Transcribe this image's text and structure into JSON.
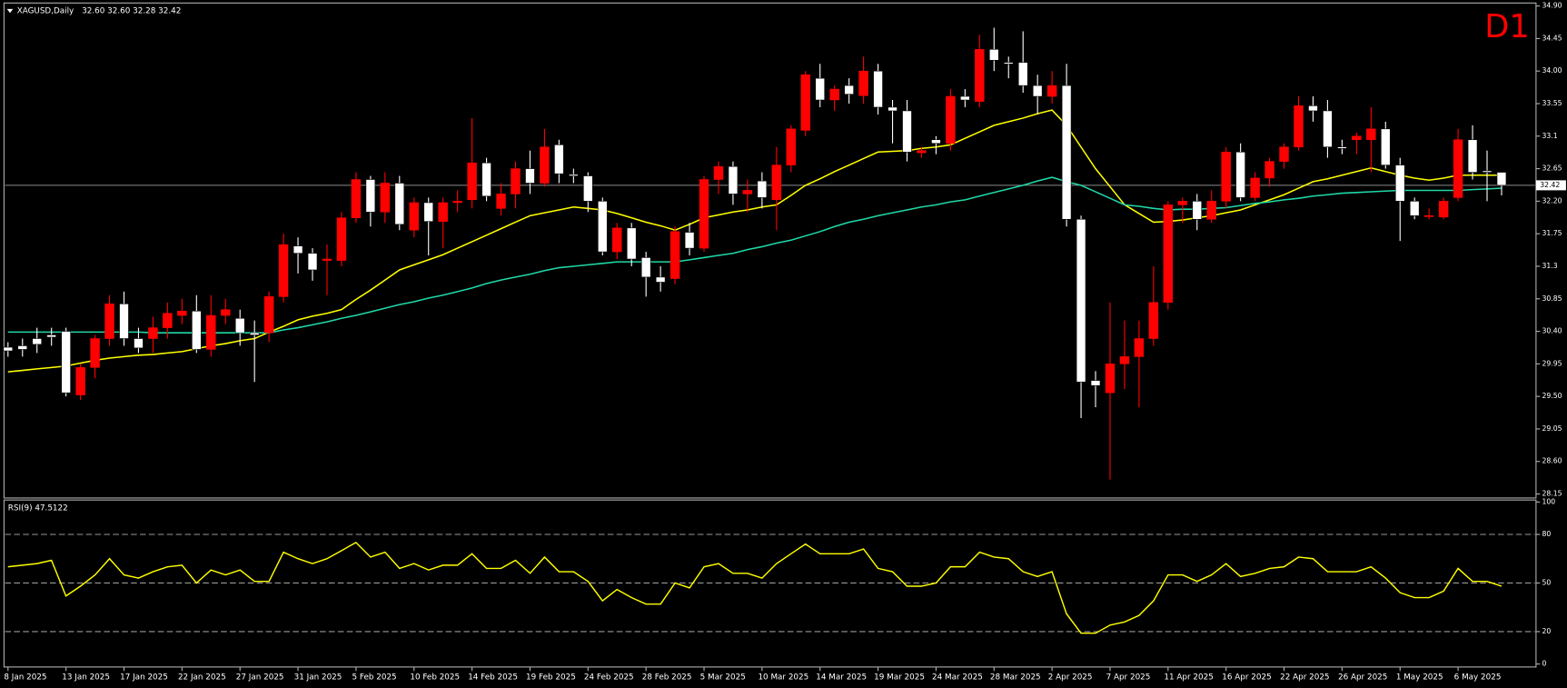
{
  "chart_data": [
    {
      "type": "candlestick",
      "title": "XAGUSD,Daily",
      "header_prices": "32.60 32.60 32.28 32.42",
      "timeframe_label": "D1",
      "categories": [
        "8 Jan 2025",
        null,
        null,
        null,
        "13 Jan 2025",
        null,
        null,
        null,
        "17 Jan 2025",
        null,
        null,
        null,
        "22 Jan 2025",
        null,
        null,
        null,
        "27 Jan 2025",
        null,
        null,
        null,
        "31 Jan 2025",
        null,
        null,
        null,
        "5 Feb 2025",
        null,
        null,
        null,
        "10 Feb 2025",
        null,
        null,
        null,
        "14 Feb 2025",
        null,
        null,
        null,
        "19 Feb 2025",
        null,
        null,
        null,
        "24 Feb 2025",
        null,
        null,
        null,
        "28 Feb 2025",
        null,
        null,
        null,
        "5 Mar 2025",
        null,
        null,
        null,
        "10 Mar 2025",
        null,
        null,
        null,
        "14 Mar 2025",
        null,
        null,
        null,
        "19 Mar 2025",
        null,
        null,
        null,
        "24 Mar 2025",
        null,
        null,
        null,
        "28 Mar 2025",
        null,
        null,
        null,
        "2 Apr 2025",
        null,
        null,
        null,
        "7 Apr 2025",
        null,
        null,
        null,
        "11 Apr 2025",
        null,
        null,
        null,
        "16 Apr 2025",
        null,
        null,
        null,
        "22 Apr 2025",
        null,
        null,
        null,
        "26 Apr 2025",
        null,
        null,
        null,
        "1 May 2025",
        null,
        null,
        null,
        "6 May 2025",
        null,
        null,
        null
      ],
      "open": [
        30.18,
        30.2,
        30.3,
        30.35,
        30.4,
        29.52,
        29.9,
        30.3,
        30.78,
        30.3,
        30.3,
        30.45,
        30.62,
        30.68,
        30.15,
        30.62,
        30.58,
        30.38,
        30.38,
        30.88,
        31.58,
        31.48,
        31.38,
        31.38,
        31.97,
        32.5,
        32.05,
        32.45,
        31.8,
        32.18,
        31.92,
        32.18,
        32.22,
        32.73,
        32.1,
        32.3,
        32.65,
        32.45,
        32.98,
        32.57,
        32.55,
        32.2,
        31.5,
        31.83,
        31.42,
        31.15,
        31.13,
        31.77,
        31.55,
        32.5,
        32.68,
        32.3,
        32.48,
        32.22,
        32.7,
        33.18,
        33.9,
        33.6,
        33.8,
        33.66,
        34.0,
        33.5,
        33.45,
        32.87,
        33.05,
        33.0,
        33.65,
        33.58,
        34.3,
        34.12,
        34.12,
        33.8,
        33.65,
        33.8,
        31.95,
        29.72,
        29.55,
        29.95,
        30.05,
        30.3,
        30.8,
        32.15,
        32.2,
        31.95,
        32.2,
        32.88,
        32.25,
        32.52,
        32.75,
        32.95,
        33.52,
        33.45,
        32.95,
        33.05,
        33.05,
        33.2,
        32.7,
        32.2,
        32.0,
        31.98,
        32.25,
        33.05,
        32.62,
        32.6
      ],
      "high": [
        30.25,
        30.3,
        30.45,
        30.45,
        30.45,
        29.95,
        30.35,
        30.9,
        30.95,
        30.45,
        30.6,
        30.8,
        30.85,
        30.9,
        30.9,
        30.85,
        30.7,
        30.55,
        30.95,
        31.75,
        31.7,
        31.55,
        31.6,
        32.05,
        32.6,
        32.55,
        32.6,
        32.55,
        32.25,
        32.25,
        32.25,
        32.35,
        33.35,
        32.8,
        32.45,
        32.75,
        32.9,
        33.2,
        33.05,
        32.65,
        32.6,
        32.25,
        31.9,
        31.9,
        31.5,
        31.3,
        31.85,
        31.9,
        32.55,
        32.75,
        32.75,
        32.5,
        32.6,
        32.95,
        33.25,
        34.0,
        34.1,
        33.8,
        33.9,
        34.2,
        34.1,
        33.6,
        33.6,
        32.95,
        33.1,
        33.75,
        33.75,
        34.5,
        34.6,
        34.2,
        34.55,
        33.95,
        34.0,
        34.1,
        32.0,
        29.85,
        30.8,
        30.55,
        30.55,
        31.3,
        32.2,
        32.25,
        32.3,
        32.35,
        32.95,
        33.0,
        32.6,
        32.8,
        33.0,
        33.65,
        33.65,
        33.6,
        33.05,
        33.15,
        33.5,
        33.3,
        32.8,
        32.25,
        32.1,
        32.25,
        33.2,
        33.25,
        32.9,
        32.6
      ],
      "low": [
        30.05,
        30.05,
        30.1,
        30.2,
        29.5,
        29.45,
        29.75,
        30.2,
        30.2,
        30.1,
        30.1,
        30.3,
        30.5,
        30.1,
        30.05,
        30.5,
        30.2,
        29.7,
        30.25,
        30.8,
        31.2,
        31.1,
        30.9,
        31.3,
        31.9,
        31.85,
        31.9,
        31.8,
        31.7,
        31.45,
        31.55,
        32.05,
        32.1,
        32.2,
        32.0,
        32.1,
        32.3,
        32.4,
        32.45,
        32.45,
        32.05,
        31.45,
        31.4,
        31.3,
        30.88,
        30.95,
        31.05,
        31.45,
        31.5,
        32.3,
        32.15,
        32.05,
        32.1,
        31.8,
        32.6,
        33.1,
        33.5,
        33.45,
        33.55,
        33.55,
        33.4,
        33.0,
        32.75,
        32.8,
        32.85,
        32.9,
        33.5,
        33.5,
        34.0,
        33.9,
        33.7,
        33.4,
        33.55,
        31.85,
        29.2,
        29.35,
        28.35,
        29.6,
        29.35,
        30.2,
        30.7,
        31.9,
        31.8,
        31.9,
        32.1,
        32.2,
        32.2,
        32.4,
        32.65,
        32.9,
        33.3,
        32.8,
        32.85,
        32.85,
        32.6,
        32.65,
        31.65,
        31.95,
        31.95,
        31.95,
        32.2,
        32.5,
        32.2,
        32.28
      ],
      "close": [
        30.13,
        30.15,
        30.22,
        30.32,
        29.55,
        29.9,
        30.3,
        30.78,
        30.3,
        30.17,
        30.45,
        30.65,
        30.68,
        30.15,
        30.62,
        30.7,
        30.38,
        30.35,
        30.88,
        31.6,
        31.48,
        31.25,
        31.4,
        31.97,
        32.5,
        32.05,
        32.45,
        31.88,
        32.18,
        31.92,
        32.18,
        32.2,
        32.73,
        32.27,
        32.3,
        32.65,
        32.45,
        32.95,
        32.58,
        32.55,
        32.2,
        31.5,
        31.83,
        31.4,
        31.15,
        31.08,
        31.78,
        31.55,
        32.5,
        32.68,
        32.3,
        32.35,
        32.25,
        32.7,
        33.2,
        33.95,
        33.6,
        33.75,
        33.68,
        34.0,
        33.5,
        33.45,
        32.88,
        32.9,
        33.0,
        33.65,
        33.6,
        34.3,
        34.15,
        34.1,
        33.8,
        33.65,
        33.8,
        31.95,
        29.7,
        29.65,
        29.95,
        30.05,
        30.3,
        30.8,
        32.15,
        32.2,
        31.95,
        32.2,
        32.88,
        32.25,
        32.52,
        32.75,
        32.95,
        33.52,
        33.45,
        32.95,
        32.93,
        33.1,
        33.2,
        32.7,
        32.2,
        32.0,
        32.0,
        32.2,
        33.05,
        32.6,
        32.6,
        32.42
      ],
      "up_color": "#ff0000",
      "down_color": "#ffffff",
      "overlays": [
        {
          "color": "#ffff00",
          "values": [
            29.84,
            29.86,
            29.88,
            29.9,
            29.92,
            29.96,
            30.0,
            30.03,
            30.05,
            30.07,
            30.08,
            30.1,
            30.12,
            30.16,
            30.2,
            30.23,
            30.27,
            30.3,
            30.39,
            30.47,
            30.56,
            30.61,
            30.65,
            30.7,
            30.84,
            30.97,
            31.11,
            31.25,
            31.32,
            31.39,
            31.46,
            31.55,
            31.64,
            31.73,
            31.82,
            31.91,
            32.0,
            32.04,
            32.08,
            32.12,
            32.1,
            32.08,
            32.03,
            31.97,
            31.91,
            31.86,
            31.8,
            31.88,
            31.97,
            32.01,
            32.05,
            32.08,
            32.12,
            32.15,
            32.28,
            32.42,
            32.51,
            32.61,
            32.7,
            32.79,
            32.88,
            32.89,
            32.9,
            32.93,
            32.95,
            32.98,
            33.07,
            33.16,
            33.25,
            33.3,
            33.35,
            33.41,
            33.46,
            33.25,
            32.95,
            32.65,
            32.4,
            32.15,
            32.03,
            31.91,
            31.92,
            31.94,
            31.97,
            32.0,
            32.04,
            32.08,
            32.15,
            32.22,
            32.29,
            32.38,
            32.47,
            32.51,
            32.56,
            32.61,
            32.66,
            32.61,
            32.56,
            32.52,
            32.49,
            32.52,
            32.56,
            32.56,
            32.56,
            32.56
          ]
        },
        {
          "color": "#20d8a8",
          "values": [
            30.39,
            30.39,
            30.39,
            30.39,
            30.39,
            30.39,
            30.39,
            30.39,
            30.39,
            30.39,
            30.38,
            30.38,
            30.38,
            30.38,
            30.38,
            30.38,
            30.38,
            30.38,
            30.38,
            30.42,
            30.45,
            30.49,
            30.53,
            30.58,
            30.62,
            30.67,
            30.72,
            30.77,
            30.81,
            30.86,
            30.9,
            30.95,
            31.0,
            31.06,
            31.11,
            31.15,
            31.19,
            31.24,
            31.28,
            31.3,
            31.32,
            31.34,
            31.36,
            31.36,
            31.36,
            31.36,
            31.36,
            31.39,
            31.42,
            31.45,
            31.48,
            31.53,
            31.57,
            31.62,
            31.66,
            31.72,
            31.78,
            31.85,
            31.91,
            31.95,
            32.0,
            32.04,
            32.08,
            32.12,
            32.15,
            32.19,
            32.22,
            32.27,
            32.32,
            32.37,
            32.42,
            32.48,
            32.53,
            32.47,
            32.42,
            32.33,
            32.24,
            32.15,
            32.13,
            32.1,
            32.08,
            32.09,
            32.09,
            32.1,
            32.11,
            32.14,
            32.17,
            32.19,
            32.22,
            32.24,
            32.27,
            32.29,
            32.31,
            32.32,
            32.33,
            32.34,
            32.35,
            32.35,
            32.35,
            32.35,
            32.35,
            32.36,
            32.37,
            32.38
          ]
        }
      ],
      "current_price": 32.42,
      "ylim": [
        28.15,
        34.9
      ],
      "yticks": [
        {
          "value": 34.9,
          "label": "34.90"
        },
        34.45,
        {
          "value": 34.0,
          "label": "34.00"
        },
        33.55,
        33.1,
        32.65,
        {
          "value": 32.2,
          "label": "32.20"
        },
        31.75,
        31.3,
        30.85,
        {
          "value": 30.4,
          "label": "30.40"
        },
        29.95,
        {
          "value": 29.5,
          "label": "29.50"
        },
        29.05,
        {
          "value": 28.6,
          "label": "28.60"
        },
        28.15
      ]
    },
    {
      "type": "line",
      "title": "RSI(9) 47.5122",
      "color": "#ffff00",
      "values": [
        60,
        61,
        62,
        64,
        42,
        48,
        55,
        65,
        55,
        53,
        57,
        60,
        61,
        50,
        58,
        55,
        58,
        51,
        51,
        69,
        65,
        62,
        65,
        70,
        75,
        66,
        69,
        59,
        62,
        58,
        61,
        61,
        68,
        59,
        59,
        64,
        56,
        66,
        57,
        57,
        51,
        39,
        46,
        41,
        37,
        37,
        50,
        47,
        60,
        62,
        56,
        56,
        53,
        62,
        68,
        74,
        68,
        68,
        68,
        71,
        59,
        57,
        48,
        48,
        50,
        60,
        60,
        69,
        66,
        65,
        57,
        54,
        57,
        31,
        19,
        19,
        24,
        26,
        30,
        39,
        55,
        55,
        51,
        55,
        62,
        54,
        56,
        59,
        60,
        66,
        65,
        57,
        57,
        57,
        60,
        53,
        44,
        41,
        41,
        45,
        59,
        51,
        51,
        48
      ],
      "ylim": [
        0,
        100
      ],
      "yticks": [
        0,
        20,
        50,
        80,
        100
      ]
    }
  ]
}
